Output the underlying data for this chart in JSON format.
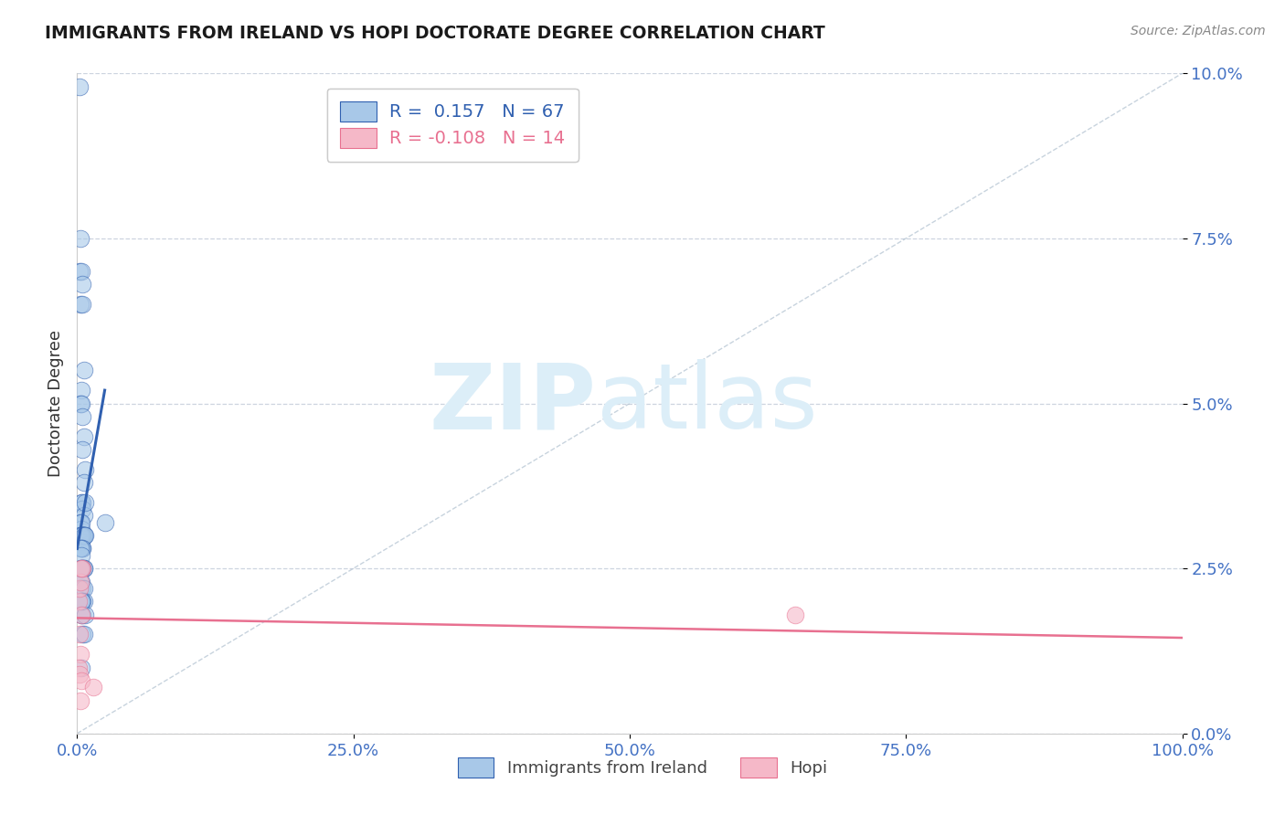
{
  "title": "IMMIGRANTS FROM IRELAND VS HOPI DOCTORATE DEGREE CORRELATION CHART",
  "source_text": "Source: ZipAtlas.com",
  "ylabel": "Doctorate Degree",
  "xlim": [
    0.0,
    100.0
  ],
  "ylim": [
    0.0,
    10.0
  ],
  "xticks": [
    0.0,
    25.0,
    50.0,
    75.0,
    100.0
  ],
  "yticks": [
    0.0,
    2.5,
    5.0,
    7.5,
    10.0
  ],
  "blue_R": 0.157,
  "blue_N": 67,
  "pink_R": -0.108,
  "pink_N": 14,
  "blue_color": "#a8c8e8",
  "pink_color": "#f5b8c8",
  "blue_line_color": "#3060b0",
  "pink_line_color": "#e87090",
  "watermark_zip": "ZIP",
  "watermark_atlas": "atlas",
  "watermark_color": "#dceef8",
  "legend_label_blue": "Immigrants from Ireland",
  "legend_label_pink": "Hopi",
  "blue_scatter_x": [
    0.2,
    0.2,
    0.3,
    0.4,
    0.3,
    0.5,
    0.5,
    0.6,
    0.4,
    0.3,
    0.4,
    0.5,
    0.6,
    0.5,
    0.7,
    0.6,
    0.4,
    0.5,
    0.5,
    0.6,
    0.3,
    0.4,
    0.5,
    0.6,
    0.4,
    0.5,
    0.3,
    0.6,
    0.7,
    0.4,
    0.5,
    0.6,
    0.4,
    0.3,
    0.5,
    0.6,
    0.4,
    0.3,
    0.5,
    0.6,
    0.7,
    0.4,
    0.5,
    0.3,
    0.4,
    0.6,
    0.5,
    0.4,
    0.6,
    0.5,
    0.3,
    0.4,
    0.3,
    0.5,
    0.6,
    0.6,
    0.4,
    0.5,
    0.4,
    0.5,
    0.7,
    2.5,
    0.3,
    0.4,
    0.5,
    0.6,
    0.4
  ],
  "blue_scatter_y": [
    9.8,
    7.0,
    7.5,
    7.0,
    6.5,
    6.8,
    6.5,
    5.5,
    5.2,
    5.0,
    5.0,
    4.8,
    4.5,
    4.3,
    4.0,
    3.8,
    3.5,
    3.5,
    3.4,
    3.3,
    3.2,
    3.1,
    3.0,
    3.0,
    2.9,
    2.8,
    3.0,
    3.0,
    3.5,
    3.2,
    3.0,
    3.0,
    3.0,
    3.0,
    3.0,
    3.0,
    3.0,
    3.0,
    3.0,
    3.0,
    3.0,
    2.8,
    2.8,
    2.8,
    2.7,
    2.5,
    2.5,
    2.5,
    2.5,
    2.5,
    2.3,
    2.3,
    2.2,
    2.2,
    2.2,
    2.0,
    2.0,
    2.0,
    1.8,
    1.8,
    1.8,
    3.2,
    2.5,
    2.0,
    1.5,
    1.5,
    1.0
  ],
  "pink_scatter_x": [
    0.1,
    0.2,
    0.3,
    0.4,
    0.5,
    0.2,
    0.3,
    0.4,
    0.15,
    0.25,
    0.35,
    1.5,
    0.3,
    65.0
  ],
  "pink_scatter_y": [
    2.0,
    2.2,
    2.3,
    1.8,
    2.5,
    1.5,
    1.2,
    2.5,
    1.0,
    0.9,
    0.8,
    0.7,
    0.5,
    1.8
  ],
  "blue_line_x": [
    0.0,
    2.5
  ],
  "blue_line_y": [
    2.8,
    5.2
  ],
  "pink_line_x": [
    0.0,
    100.0
  ],
  "pink_line_y": [
    1.75,
    1.45
  ],
  "diag_line_x": [
    0.0,
    100.0
  ],
  "diag_line_y": [
    0.0,
    10.0
  ],
  "background_color": "#ffffff",
  "grid_color": "#c8d0dc",
  "title_color": "#1a1a1a",
  "axis_label_color": "#333333",
  "tick_label_color": "#4472c4",
  "source_color": "#888888"
}
